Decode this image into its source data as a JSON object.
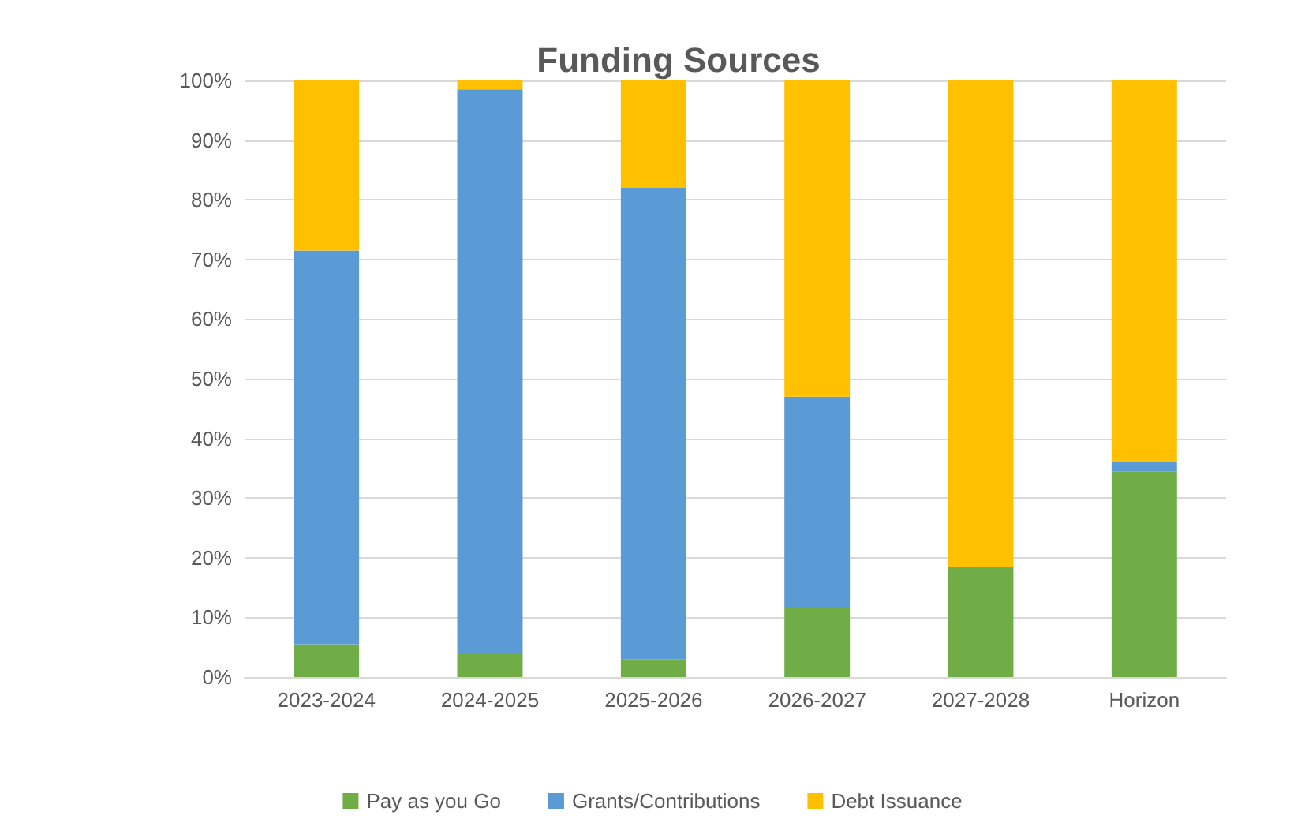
{
  "chart_data": {
    "type": "bar",
    "title": "Funding Sources",
    "stacked": true,
    "categories": [
      "2023-2024",
      "2024-2025",
      "2025-2026",
      "2026-2027",
      "2027-2028",
      "Horizon"
    ],
    "series": [
      {
        "name": "Pay as you Go",
        "color": "#70ad47",
        "values": [
          5.5,
          4,
          3,
          11.5,
          18.5,
          34.5
        ]
      },
      {
        "name": "Grants/Contributions",
        "color": "#5b9bd5",
        "values": [
          66,
          94.5,
          79,
          35.5,
          0,
          1.5
        ]
      },
      {
        "name": "Debt Issuance",
        "color": "#ffc000",
        "values": [
          28.5,
          1.5,
          18,
          53,
          81.5,
          64
        ]
      }
    ],
    "ylim": [
      0,
      100
    ],
    "yticks": [
      {
        "value": 0,
        "label": "0%"
      },
      {
        "value": 10,
        "label": "10%"
      },
      {
        "value": 20,
        "label": "20%"
      },
      {
        "value": 30,
        "label": "30%"
      },
      {
        "value": 40,
        "label": "40%"
      },
      {
        "value": 50,
        "label": "50%"
      },
      {
        "value": 60,
        "label": "60%"
      },
      {
        "value": 70,
        "label": "70%"
      },
      {
        "value": 80,
        "label": "80%"
      },
      {
        "value": 90,
        "label": "90%"
      },
      {
        "value": 100,
        "label": "100%"
      }
    ],
    "grid": "y",
    "legend": "bottom"
  }
}
